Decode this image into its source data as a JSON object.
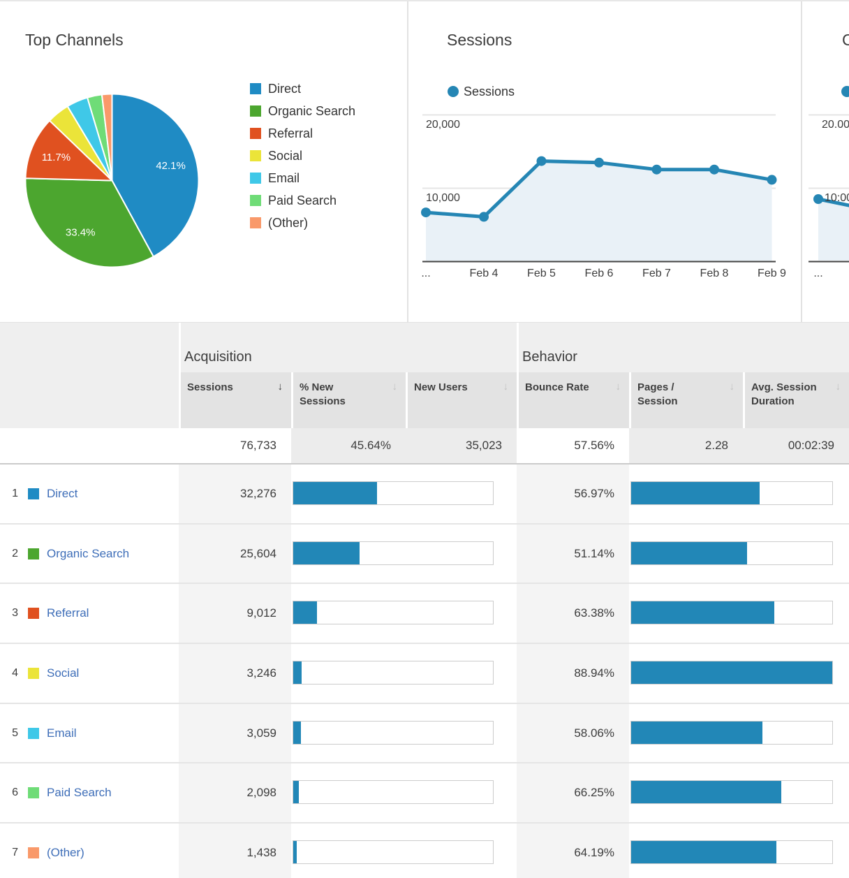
{
  "palette": {
    "blue": "#1F8BC4",
    "green": "#4CA62F",
    "red": "#E05120",
    "yellow": "#EBE439",
    "cyan": "#3FC8E8",
    "lightgreen": "#6FDC77",
    "salmon": "#F9996A",
    "bar_blue": "#2287B7",
    "line_blue": "#2586B4",
    "area_fill": "#E9F1F7",
    "link_blue": "#3E6EB8"
  },
  "top_channels": {
    "title": "Top Channels",
    "slices": [
      {
        "label": "Direct",
        "pct": 42.06,
        "display": "42.1%",
        "color_key": "blue"
      },
      {
        "label": "Organic Search",
        "pct": 33.37,
        "display": "33.4%",
        "color_key": "green"
      },
      {
        "label": "Referral",
        "pct": 11.74,
        "display": "11.7%",
        "color_key": "red"
      },
      {
        "label": "Social",
        "pct": 4.23,
        "display": "",
        "color_key": "yellow"
      },
      {
        "label": "Email",
        "pct": 3.99,
        "display": "",
        "color_key": "cyan"
      },
      {
        "label": "Paid Search",
        "pct": 2.73,
        "display": "",
        "color_key": "lightgreen"
      },
      {
        "label": "(Other)",
        "pct": 1.87,
        "display": "",
        "color_key": "salmon"
      }
    ]
  },
  "sessions_chart": {
    "title": "Sessions",
    "legend_label": "Sessions",
    "y_ticks": [
      {
        "label": "20,000",
        "value": 20000
      },
      {
        "label": "10,000",
        "value": 10000
      }
    ],
    "x_ticks": [
      "...",
      "Feb 4",
      "Feb 5",
      "Feb 6",
      "Feb 7",
      "Feb 8",
      "Feb 9"
    ],
    "values": [
      6700,
      6100,
      13700,
      13500,
      12550,
      12550,
      11150
    ]
  },
  "partial_chart": {
    "title": "C",
    "tick_top": "20.00",
    "tick_mid": "10:00",
    "x_tick": "..."
  },
  "table": {
    "group_acquisition": "Acquisition",
    "group_behavior": "Behavior",
    "headers": [
      {
        "label": "Sessions",
        "sorted": true
      },
      {
        "label": "% New Sessions",
        "sorted": false
      },
      {
        "label": "New Users",
        "sorted": false
      },
      {
        "label": "Bounce Rate",
        "sorted": false
      },
      {
        "label": "Pages / Session",
        "sorted": false
      },
      {
        "label": "Avg. Session Duration",
        "sorted": false
      }
    ],
    "totals": {
      "sessions": "76,733",
      "pct_new_sessions": "45.64%",
      "new_users": "35,023",
      "bounce_rate": "57.56%",
      "pages_session": "2.28",
      "avg_duration": "00:02:39"
    },
    "sessions_total": 76733,
    "bounce_scale_max": 88.94,
    "rows": [
      {
        "rank": "1",
        "channel": "Direct",
        "color_key": "blue",
        "sessions": "32,276",
        "sessions_num": 32276,
        "bounce": "56.97%",
        "bounce_num": 56.97
      },
      {
        "rank": "2",
        "channel": "Organic Search",
        "color_key": "green",
        "sessions": "25,604",
        "sessions_num": 25604,
        "bounce": "51.14%",
        "bounce_num": 51.14
      },
      {
        "rank": "3",
        "channel": "Referral",
        "color_key": "red",
        "sessions": "9,012",
        "sessions_num": 9012,
        "bounce": "63.38%",
        "bounce_num": 63.38
      },
      {
        "rank": "4",
        "channel": "Social",
        "color_key": "yellow",
        "sessions": "3,246",
        "sessions_num": 3246,
        "bounce": "88.94%",
        "bounce_num": 88.94
      },
      {
        "rank": "5",
        "channel": "Email",
        "color_key": "cyan",
        "sessions": "3,059",
        "sessions_num": 3059,
        "bounce": "58.06%",
        "bounce_num": 58.06
      },
      {
        "rank": "6",
        "channel": "Paid Search",
        "color_key": "lightgreen",
        "sessions": "2,098",
        "sessions_num": 2098,
        "bounce": "66.25%",
        "bounce_num": 66.25
      },
      {
        "rank": "7",
        "channel": "(Other)",
        "color_key": "salmon",
        "sessions": "1,438",
        "sessions_num": 1438,
        "bounce": "64.19%",
        "bounce_num": 64.19
      }
    ]
  },
  "chart_data": [
    {
      "type": "pie",
      "title": "Top Channels",
      "labels": [
        "Direct",
        "Organic Search",
        "Referral",
        "Social",
        "Email",
        "Paid Search",
        "(Other)"
      ],
      "values_pct": [
        42.1,
        33.4,
        11.7,
        4.2,
        4.0,
        2.7,
        1.9
      ],
      "sessions": [
        32276,
        25604,
        9012,
        3246,
        3059,
        2098,
        1438
      ],
      "legend_position": "right",
      "shown_labels": [
        "42.1%",
        "33.4%",
        "11.7%"
      ]
    },
    {
      "type": "line",
      "title": "Sessions",
      "x": [
        "...",
        "Feb 4",
        "Feb 5",
        "Feb 6",
        "Feb 7",
        "Feb 8",
        "Feb 9"
      ],
      "series": [
        {
          "name": "Sessions",
          "values": [
            6700,
            6100,
            13700,
            13500,
            12550,
            12550,
            11150
          ]
        }
      ],
      "ylim": [
        0,
        21000
      ],
      "yticks": [
        10000,
        20000
      ],
      "area_fill": true,
      "grid": true
    }
  ]
}
